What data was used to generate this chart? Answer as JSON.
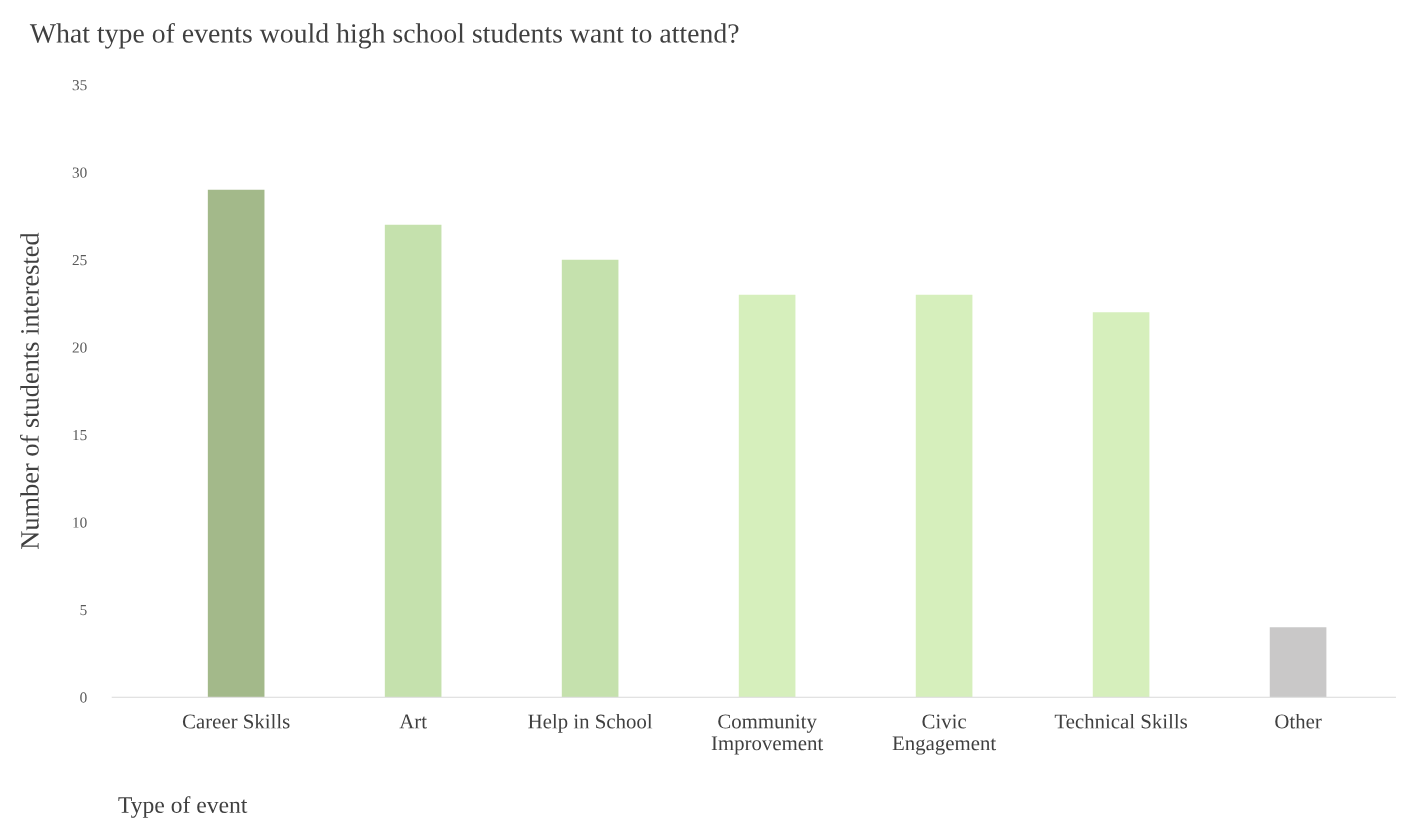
{
  "chart_data": {
    "type": "bar",
    "title": "What type of events would high school students want to attend?",
    "xlabel": "Type of event",
    "ylabel": "Number of students interested",
    "categories": [
      "Career Skills",
      "Art",
      "Help in School",
      "Community\nImprovement",
      "Civic\nEngagement",
      "Technical Skills",
      "Other"
    ],
    "values": [
      29,
      27,
      25,
      23,
      23,
      22,
      4
    ],
    "colors": [
      "#a3b98a",
      "#c5e1ad",
      "#c5e1ad",
      "#d6efbc",
      "#d6efbc",
      "#d6efbc",
      "#c9c8c8"
    ],
    "ylim": [
      0,
      35
    ],
    "yticks": [
      0,
      5,
      10,
      15,
      20,
      25,
      30,
      35
    ],
    "grid": false
  }
}
